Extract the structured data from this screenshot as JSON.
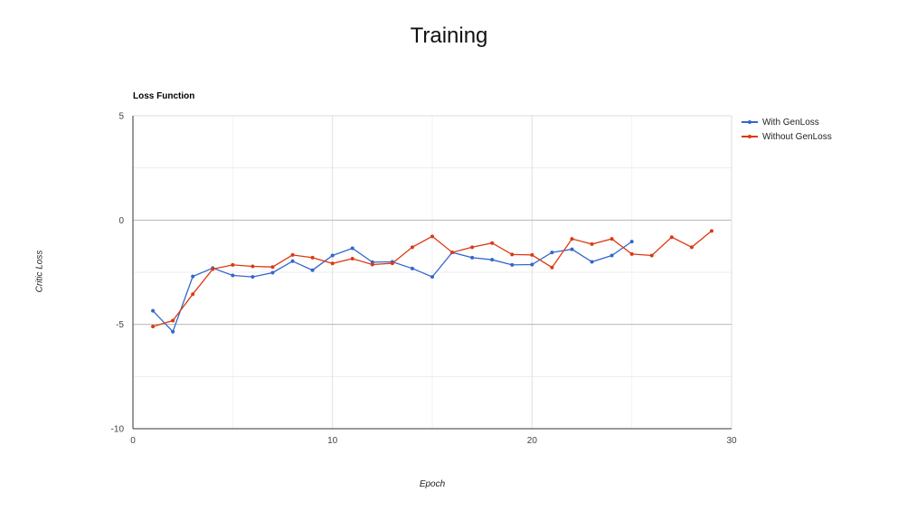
{
  "page": {
    "title": "Training"
  },
  "chart_data": {
    "type": "line",
    "title": "Loss Function",
    "xlabel": "Epoch",
    "ylabel": "Critic Loss",
    "xlim": [
      0,
      30
    ],
    "ylim": [
      -10,
      5
    ],
    "xticks": [
      "0",
      "10",
      "20",
      "30"
    ],
    "yticks": [
      "5",
      "0",
      "-5",
      "-10"
    ],
    "grid": true,
    "legend_position": "right",
    "series": [
      {
        "name": "With GenLoss",
        "color": "#3366cc",
        "x": [
          1,
          2,
          3,
          4,
          5,
          6,
          7,
          8,
          9,
          10,
          11,
          12,
          13,
          14,
          15,
          16,
          17,
          18,
          19,
          20,
          21,
          22,
          23,
          24,
          25
        ],
        "y": [
          -4.35,
          -5.35,
          -2.7,
          -2.3,
          -2.65,
          -2.72,
          -2.52,
          -1.97,
          -2.4,
          -1.7,
          -1.35,
          -2.02,
          -2.0,
          -2.32,
          -2.72,
          -1.55,
          -1.8,
          -1.9,
          -2.15,
          -2.13,
          -1.55,
          -1.4,
          -2.0,
          -1.7,
          -1.03
        ]
      },
      {
        "name": "Without GenLoss",
        "color": "#dc3912",
        "x": [
          1,
          2,
          3,
          4,
          5,
          6,
          7,
          8,
          9,
          10,
          11,
          12,
          13,
          14,
          15,
          16,
          17,
          18,
          19,
          20,
          21,
          22,
          23,
          24,
          25,
          26,
          27,
          28,
          29
        ],
        "y": [
          -5.1,
          -4.82,
          -3.55,
          -2.35,
          -2.15,
          -2.22,
          -2.25,
          -1.67,
          -1.8,
          -2.08,
          -1.85,
          -2.13,
          -2.07,
          -1.3,
          -0.78,
          -1.55,
          -1.3,
          -1.1,
          -1.65,
          -1.67,
          -2.27,
          -0.9,
          -1.15,
          -0.9,
          -1.63,
          -1.7,
          -0.82,
          -1.3,
          -0.52
        ]
      }
    ]
  }
}
